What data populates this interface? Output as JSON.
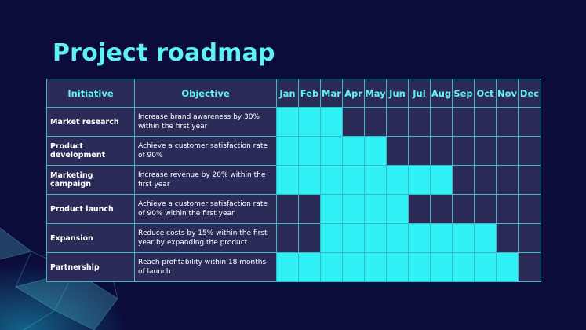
{
  "title": "Project roadmap",
  "headers": {
    "initiative": "Initiative",
    "objective": "Objective"
  },
  "months": [
    "Jan",
    "Feb",
    "Mar",
    "Apr",
    "May",
    "Jun",
    "Jul",
    "Aug",
    "Sep",
    "Oct",
    "Nov",
    "Dec"
  ],
  "colors": {
    "background": "#0c0c3a",
    "accent": "#5ff2f2",
    "cell_on": "#30f2f6",
    "cell_off": "#2b2b58",
    "border": "#3bb7c6"
  },
  "rows": [
    {
      "initiative": "Market research",
      "objective": "Increase brand awareness by 30% within the first year",
      "months_active": [
        1,
        2,
        3
      ]
    },
    {
      "initiative": "Product development",
      "objective": "Achieve a customer satisfaction rate of 90%",
      "months_active": [
        1,
        2,
        3,
        4,
        5
      ]
    },
    {
      "initiative": "Marketing campaign",
      "objective": "Increase revenue by 20% within the first year",
      "months_active": [
        1,
        2,
        3,
        4,
        5,
        6,
        7,
        8
      ]
    },
    {
      "initiative": "Product launch",
      "objective": "Achieve a customer satisfaction rate of 90% within the first year",
      "months_active": [
        3,
        4,
        5,
        6
      ]
    },
    {
      "initiative": "Expansion",
      "objective": "Reduce costs by 15% within the first year by expanding the product",
      "months_active": [
        3,
        4,
        5,
        6,
        7,
        8,
        9,
        10
      ]
    },
    {
      "initiative": "Partnership",
      "objective": "Reach profitability within 18 months of launch",
      "months_active": [
        1,
        2,
        3,
        4,
        5,
        6,
        7,
        8,
        9,
        10,
        11
      ]
    }
  ]
}
